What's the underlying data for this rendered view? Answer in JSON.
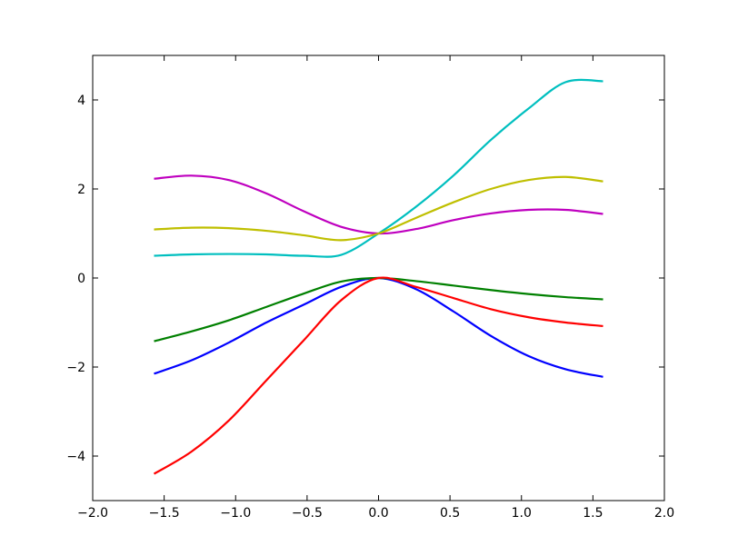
{
  "chart_data": {
    "type": "line",
    "x": [
      -1.5708,
      -1.309,
      -1.0472,
      -0.7854,
      -0.5236,
      -0.2618,
      0,
      0.2618,
      0.5236,
      0.7854,
      1.0472,
      1.309,
      1.5708
    ],
    "series": [
      {
        "color": "#0000ff",
        "values": [
          -2.15,
          -1.85,
          -1.45,
          -1.0,
          -0.6,
          -0.2,
          0,
          -0.25,
          -0.75,
          -1.3,
          -1.75,
          -2.05,
          -2.22
        ]
      },
      {
        "color": "#008000",
        "values": [
          -1.42,
          -1.2,
          -0.95,
          -0.65,
          -0.35,
          -0.08,
          0,
          -0.07,
          -0.17,
          -0.27,
          -0.36,
          -0.43,
          -0.48
        ]
      },
      {
        "color": "#ff0000",
        "values": [
          -4.4,
          -3.9,
          -3.2,
          -2.3,
          -1.4,
          -0.5,
          0,
          -0.2,
          -0.45,
          -0.7,
          -0.88,
          -1.0,
          -1.08
        ]
      },
      {
        "color": "#00bfbf",
        "values": [
          0.5,
          0.53,
          0.54,
          0.53,
          0.5,
          0.52,
          1.0,
          1.6,
          2.3,
          3.1,
          3.8,
          4.4,
          4.42
        ]
      },
      {
        "color": "#bf00bf",
        "values": [
          2.23,
          2.3,
          2.2,
          1.9,
          1.5,
          1.15,
          1.0,
          1.1,
          1.3,
          1.45,
          1.53,
          1.53,
          1.44
        ]
      },
      {
        "color": "#bfbf00",
        "values": [
          1.09,
          1.13,
          1.12,
          1.06,
          0.96,
          0.85,
          1.0,
          1.35,
          1.7,
          2.0,
          2.2,
          2.27,
          2.17
        ]
      }
    ],
    "xlim": [
      -2,
      2
    ],
    "ylim": [
      -5,
      5
    ],
    "xticks": [
      {
        "value": -2,
        "label": "−2.0"
      },
      {
        "value": -1.5,
        "label": "−1.5"
      },
      {
        "value": -1,
        "label": "−1.0"
      },
      {
        "value": -0.5,
        "label": "−0.5"
      },
      {
        "value": 0,
        "label": "0.0"
      },
      {
        "value": 0.5,
        "label": "0.5"
      },
      {
        "value": 1,
        "label": "1.0"
      },
      {
        "value": 1.5,
        "label": "1.5"
      },
      {
        "value": 2,
        "label": "2.0"
      }
    ],
    "yticks": [
      {
        "value": -4,
        "label": "−4"
      },
      {
        "value": -2,
        "label": "−2"
      },
      0,
      2,
      4
    ]
  }
}
